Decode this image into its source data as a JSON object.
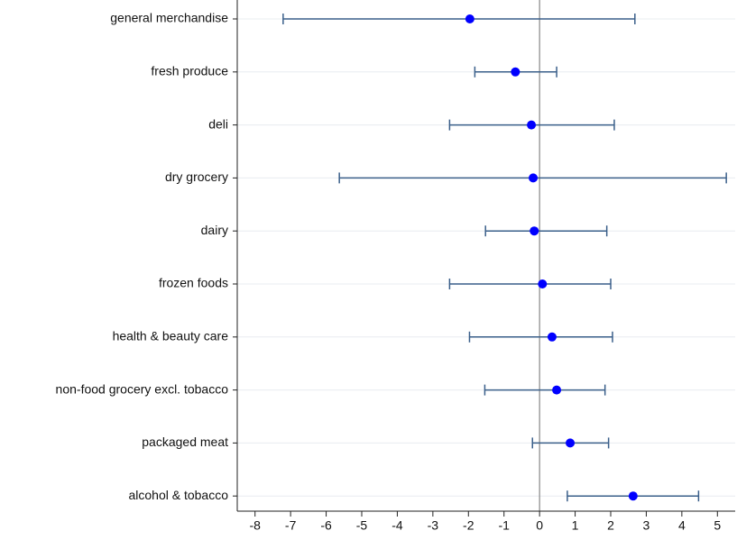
{
  "chart_data": {
    "type": "errorbar",
    "categories": [
      "general merchandise",
      "fresh produce",
      "deli",
      "dry grocery",
      "dairy",
      "frozen foods",
      "health & beauty care",
      "non-food grocery excl. tobacco",
      "packaged meat",
      "alcohol & tobacco"
    ],
    "values": [
      -1.96,
      -0.68,
      -0.23,
      -0.18,
      -0.15,
      0.08,
      0.35,
      0.48,
      0.86,
      2.63
    ],
    "ci_low": [
      -7.21,
      -1.82,
      -2.53,
      -5.63,
      -1.52,
      -2.53,
      -1.97,
      -1.54,
      -0.2,
      0.78
    ],
    "ci_high": [
      2.68,
      0.48,
      2.1,
      5.25,
      1.89,
      2.0,
      2.05,
      1.84,
      1.94,
      4.47
    ],
    "point_color": "#0000ff",
    "bar_color": "#3a5f8a",
    "xlim": [
      -8.5,
      5.5
    ],
    "xticks": [
      -8,
      -7,
      -6,
      -5,
      -4,
      -3,
      -2,
      -1,
      0,
      1,
      2,
      3,
      4,
      5
    ],
    "refline": 0,
    "grid": true
  }
}
